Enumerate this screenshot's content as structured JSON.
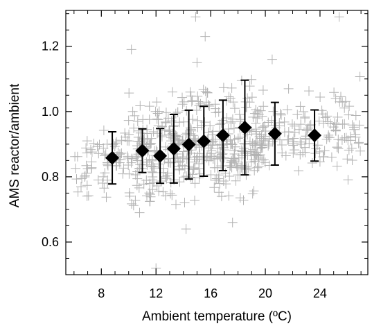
{
  "chart_data": {
    "type": "scatter",
    "xlabel": "Ambient temperature (ºC)",
    "ylabel": "AMS reactor/ambient",
    "xlim": [
      5.4,
      27.5
    ],
    "ylim": [
      0.5,
      1.31
    ],
    "x_ticks": [
      8,
      12,
      16,
      20,
      24
    ],
    "x_tick_labels": [
      "8",
      "12",
      "16",
      "20",
      "24"
    ],
    "y_ticks": [
      0.6,
      0.8,
      1.0,
      1.2
    ],
    "y_tick_labels": [
      "0.6",
      "0.8",
      "1.0",
      "1.2"
    ],
    "grid": false,
    "series": [
      {
        "marker": "plus",
        "color": "#b3b3b3",
        "approx_point_count": 650,
        "x_range": [
          5.8,
          27.2
        ],
        "y_range": [
          0.52,
          1.29
        ],
        "outliers": [
          {
            "x": 10.2,
            "y": 1.19
          },
          {
            "x": 13.2,
            "y": 1.06
          },
          {
            "x": 14.9,
            "y": 1.29
          },
          {
            "x": 15.6,
            "y": 1.23
          },
          {
            "x": 15.0,
            "y": 1.15
          },
          {
            "x": 21.7,
            "y": 1.07
          },
          {
            "x": 20.5,
            "y": 1.16
          },
          {
            "x": 25.4,
            "y": 1.29
          },
          {
            "x": 14.2,
            "y": 0.64
          },
          {
            "x": 12.0,
            "y": 0.52
          },
          {
            "x": 17.6,
            "y": 0.66
          },
          {
            "x": 16.8,
            "y": 0.74
          },
          {
            "x": 10.8,
            "y": 0.69
          },
          {
            "x": 26.6,
            "y": 0.93
          }
        ]
      },
      {
        "marker": "diamond",
        "color": "#000000",
        "x": [
          8.8,
          11.0,
          12.3,
          13.3,
          14.4,
          15.5,
          16.9,
          18.5,
          20.7,
          23.6
        ],
        "y": [
          0.858,
          0.88,
          0.864,
          0.886,
          0.899,
          0.909,
          0.927,
          0.951,
          0.932,
          0.927
        ],
        "err_low": [
          0.778,
          0.813,
          0.78,
          0.781,
          0.793,
          0.802,
          0.819,
          0.806,
          0.836,
          0.848
        ],
        "err_high": [
          0.938,
          0.947,
          0.948,
          0.991,
          1.004,
          1.016,
          1.035,
          1.096,
          1.028,
          1.005
        ]
      }
    ]
  }
}
